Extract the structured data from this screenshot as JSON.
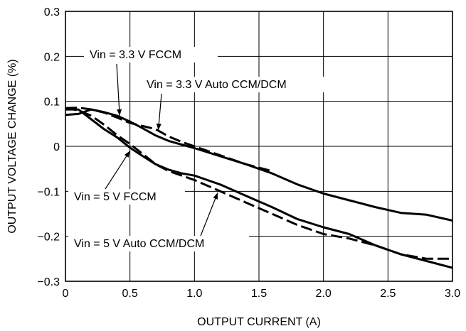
{
  "chart_data": {
    "type": "line",
    "xlabel": "OUTPUT CURRENT (A)",
    "ylabel": "OUTPUT VOLTAGE CHANGE (%)",
    "xlim": [
      0,
      3.0
    ],
    "ylim": [
      -0.3,
      0.3
    ],
    "x_ticks": [
      "0",
      "0.5",
      "1.0",
      "1.5",
      "2.0",
      "2.5",
      "3.0"
    ],
    "y_ticks": [
      "0.3",
      "0.2",
      "0.1",
      "0",
      "−0.1",
      "−0.2",
      "−0.3"
    ],
    "grid": true,
    "series": [
      {
        "name": "Vin = 3.3 V FCCM",
        "style": "solid",
        "color": "#000000",
        "points": [
          [
            0,
            0.07
          ],
          [
            0.1,
            0.072
          ],
          [
            0.2,
            0.082
          ],
          [
            0.3,
            0.076
          ],
          [
            0.4,
            0.068
          ],
          [
            0.5,
            0.055
          ],
          [
            0.6,
            0.04
          ],
          [
            0.7,
            0.024
          ],
          [
            0.8,
            0.012
          ],
          [
            0.9,
            0.004
          ],
          [
            1.0,
            -0.004
          ],
          [
            1.2,
            -0.022
          ],
          [
            1.4,
            -0.04
          ],
          [
            1.6,
            -0.06
          ],
          [
            1.8,
            -0.085
          ],
          [
            2.0,
            -0.105
          ],
          [
            2.2,
            -0.12
          ],
          [
            2.4,
            -0.135
          ],
          [
            2.6,
            -0.148
          ],
          [
            2.8,
            -0.152
          ],
          [
            3.0,
            -0.165
          ]
        ]
      },
      {
        "name": "Vin = 3.3 V Auto CCM/DCM",
        "style": "dashed",
        "color": "#000000",
        "points": [
          [
            0,
            0.085
          ],
          [
            0.1,
            0.086
          ],
          [
            0.2,
            0.082
          ],
          [
            0.3,
            0.075
          ],
          [
            0.4,
            0.064
          ],
          [
            0.5,
            0.052
          ],
          [
            0.6,
            0.045
          ],
          [
            0.7,
            0.038
          ],
          [
            0.8,
            0.022
          ],
          [
            0.9,
            0.01
          ],
          [
            1.0,
            0.0
          ],
          [
            1.2,
            -0.02
          ],
          [
            1.4,
            -0.04
          ],
          [
            1.6,
            -0.055
          ]
        ]
      },
      {
        "name": "Vin = 5 V FCCM",
        "style": "solid",
        "color": "#000000",
        "points": [
          [
            0,
            0.082
          ],
          [
            0.1,
            0.082
          ],
          [
            0.2,
            0.06
          ],
          [
            0.3,
            0.038
          ],
          [
            0.4,
            0.02
          ],
          [
            0.5,
            -0.003
          ],
          [
            0.6,
            -0.022
          ],
          [
            0.7,
            -0.04
          ],
          [
            0.8,
            -0.052
          ],
          [
            0.9,
            -0.06
          ],
          [
            1.0,
            -0.065
          ],
          [
            1.1,
            -0.075
          ],
          [
            1.2,
            -0.085
          ],
          [
            1.4,
            -0.11
          ],
          [
            1.6,
            -0.135
          ],
          [
            1.8,
            -0.162
          ],
          [
            2.0,
            -0.18
          ],
          [
            2.2,
            -0.195
          ],
          [
            2.4,
            -0.22
          ],
          [
            2.6,
            -0.24
          ],
          [
            2.8,
            -0.255
          ],
          [
            3.0,
            -0.27
          ]
        ]
      },
      {
        "name": "Vin = 5 V Auto CCM/DCM",
        "style": "dashed",
        "color": "#000000",
        "points": [
          [
            0,
            0.085
          ],
          [
            0.1,
            0.08
          ],
          [
            0.2,
            0.068
          ],
          [
            0.3,
            0.048
          ],
          [
            0.4,
            0.025
          ],
          [
            0.5,
            0.005
          ],
          [
            0.6,
            -0.017
          ],
          [
            0.7,
            -0.04
          ],
          [
            0.8,
            -0.055
          ],
          [
            1.0,
            -0.075
          ],
          [
            1.2,
            -0.1
          ],
          [
            1.4,
            -0.125
          ],
          [
            1.6,
            -0.15
          ],
          [
            1.8,
            -0.175
          ],
          [
            2.0,
            -0.195
          ],
          [
            2.2,
            -0.205
          ],
          [
            2.4,
            -0.22
          ],
          [
            2.6,
            -0.24
          ],
          [
            2.8,
            -0.25
          ],
          [
            3.0,
            -0.25
          ]
        ]
      }
    ],
    "annotations": [
      {
        "text": "Vin = 3.3 V FCCM",
        "target": [
          0.42,
          0.068
        ]
      },
      {
        "text": "Vin = 3.3 V Auto CCM/DCM",
        "target": [
          0.72,
          0.036
        ]
      },
      {
        "text": "Vin = 5 V FCCM",
        "target": [
          0.5,
          -0.01
        ]
      },
      {
        "text": "Vin = 5 V Auto CCM/DCM",
        "target": [
          1.18,
          -0.103
        ]
      }
    ]
  }
}
